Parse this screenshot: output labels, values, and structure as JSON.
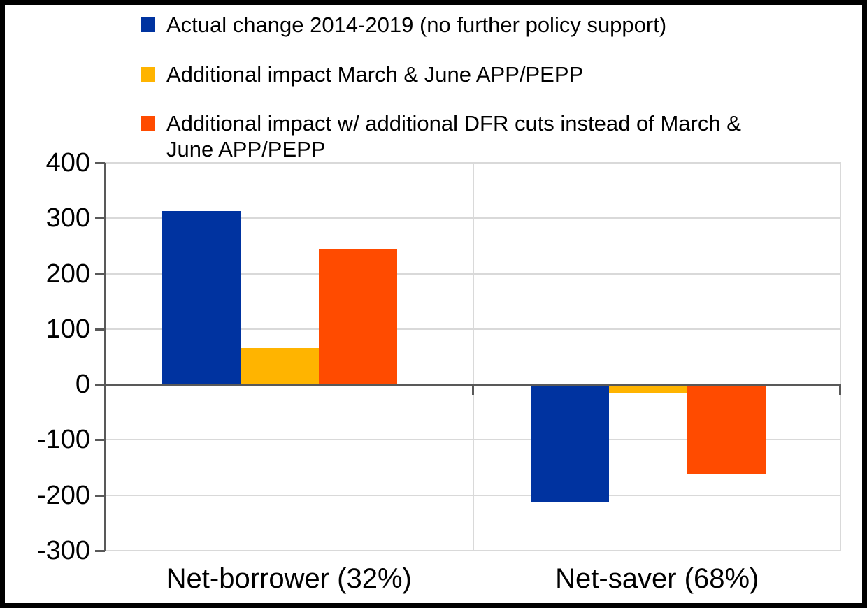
{
  "colors": {
    "series_blue": "#0033A0",
    "series_yellow": "#FFB400",
    "series_orange": "#FF4B00",
    "axis_dark": "#595959",
    "gridline": "#D9D9D9",
    "text": "#000000",
    "frame": "#000000",
    "background": "#FFFFFF"
  },
  "legend": {
    "items": [
      {
        "swatch_name": "blue-square-swatch",
        "color": "#0033A0",
        "label": "Actual change 2014-2019 (no further policy support)"
      },
      {
        "swatch_name": "yellow-square-swatch",
        "color": "#FFB400",
        "label": "Additional impact March & June APP/PEPP"
      },
      {
        "swatch_name": "orange-square-swatch",
        "color": "#FF4B00",
        "label": "Additional impact w/ additional DFR cuts instead of March &\nJune APP/PEPP"
      }
    ]
  },
  "chart_data": {
    "type": "bar",
    "categories": [
      "Net-borrower (32%)",
      "Net-saver (68%)"
    ],
    "series": [
      {
        "name": "Actual change 2014-2019 (no further policy support)",
        "color": "#0033A0",
        "values": [
          313,
          -212
        ]
      },
      {
        "name": "Additional impact March & June APP/PEPP",
        "color": "#FFB400",
        "values": [
          66,
          -15
        ]
      },
      {
        "name": "Additional impact w/ additional DFR cuts instead of March & June APP/PEPP",
        "color": "#FF4B00",
        "values": [
          245,
          -160
        ]
      }
    ],
    "title": "",
    "xlabel": "",
    "ylabel": "",
    "yticks": [
      400,
      300,
      200,
      100,
      0,
      -100,
      -200,
      -300
    ],
    "ylim": [
      -300,
      400
    ],
    "grid": true,
    "legend_position": "top-left",
    "zero_baseline": true
  }
}
